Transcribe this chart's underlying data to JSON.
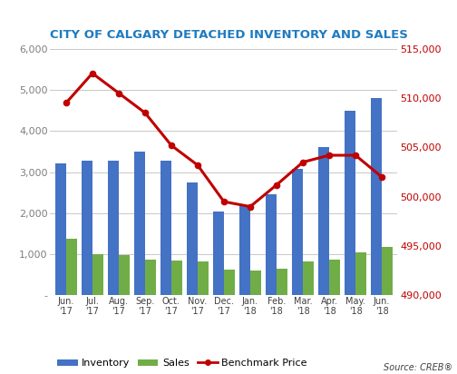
{
  "title": "CITY OF CALGARY DETACHED INVENTORY AND SALES",
  "title_color": "#1F7BC0",
  "labels": [
    "Jun.\n'17",
    "Jul.\n'17",
    "Aug.\n'17",
    "Sep.\n'17",
    "Oct.\n'17",
    "Nov.\n'17",
    "Dec.\n'17",
    "Jan.\n'18",
    "Feb.\n'18",
    "Mar.\n'18",
    "Apr.\n'18",
    "May.\n'18",
    "Jun.\n'18"
  ],
  "inventory": [
    3200,
    3280,
    3280,
    3500,
    3280,
    2750,
    2050,
    2200,
    2450,
    3070,
    3600,
    4500,
    4800
  ],
  "sales": [
    1380,
    1000,
    990,
    880,
    860,
    820,
    620,
    600,
    640,
    820,
    880,
    1040,
    1180
  ],
  "benchmark": [
    509500,
    512500,
    510500,
    508500,
    505200,
    503200,
    499500,
    499000,
    501200,
    503500,
    504200,
    504200,
    502000
  ],
  "inventory_color": "#4472C4",
  "sales_color": "#70AD47",
  "benchmark_color": "#C00000",
  "ylim_left": [
    0,
    6000
  ],
  "ylim_right": [
    490000,
    515000
  ],
  "yticks_left": [
    0,
    1000,
    2000,
    3000,
    4000,
    5000,
    6000
  ],
  "yticks_right": [
    490000,
    495000,
    500000,
    505000,
    510000,
    515000
  ],
  "source_text": "Source: CREB®",
  "background_color": "#FFFFFF",
  "left_tick_color": "#7F7F7F",
  "right_tick_color": "#C00000"
}
